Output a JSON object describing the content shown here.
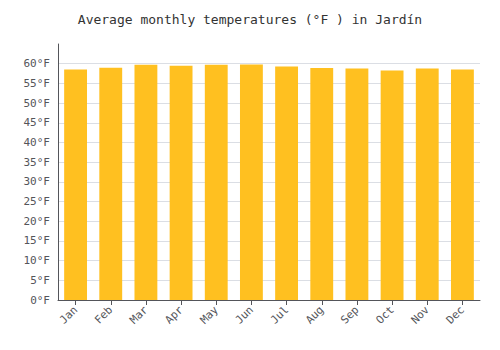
{
  "chart_data": {
    "type": "bar",
    "title": "Average monthly temperatures (°F ) in Jardín",
    "categories": [
      "Jan",
      "Feb",
      "Mar",
      "Apr",
      "May",
      "Jun",
      "Jul",
      "Aug",
      "Sep",
      "Oct",
      "Nov",
      "Dec"
    ],
    "values": [
      58.5,
      59.0,
      59.7,
      59.5,
      59.7,
      59.8,
      59.3,
      58.9,
      58.8,
      58.3,
      58.8,
      58.5
    ],
    "color": "#FFC020",
    "ylim": [
      0,
      65
    ],
    "yticks": [
      {
        "value": 0,
        "label": "0°F"
      },
      {
        "value": 5,
        "label": "5°F"
      },
      {
        "value": 10,
        "label": "10°F"
      },
      {
        "value": 15,
        "label": "15°F"
      },
      {
        "value": 20,
        "label": "20°F"
      },
      {
        "value": 25,
        "label": "25°F"
      },
      {
        "value": 30,
        "label": "30°F"
      },
      {
        "value": 35,
        "label": "35°F"
      },
      {
        "value": 40,
        "label": "40°F"
      },
      {
        "value": 45,
        "label": "45°F"
      },
      {
        "value": 50,
        "label": "50°F"
      },
      {
        "value": 55,
        "label": "55°F"
      },
      {
        "value": 60,
        "label": "60°F"
      }
    ],
    "grid": true
  }
}
